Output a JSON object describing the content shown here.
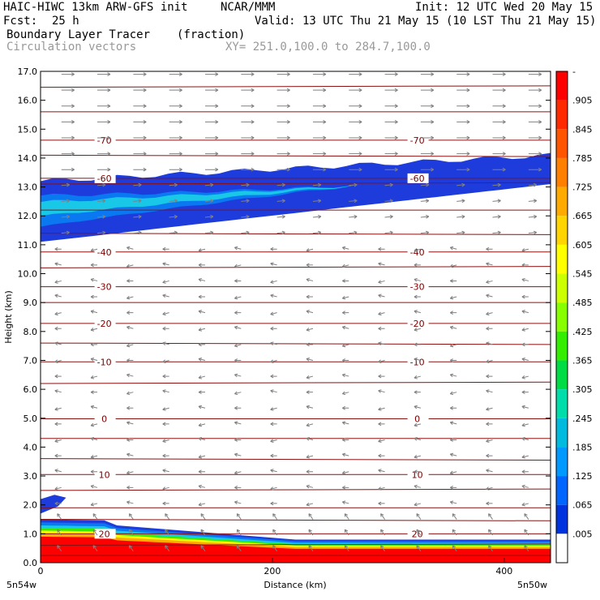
{
  "header": {
    "title_left": "HAIC-HIWC 13km ARW-GFS init",
    "org": "NCAR/MMM",
    "init": "Init: 12 UTC Wed 20 May 15",
    "fcst_label": "Fcst:",
    "fcst_value": "25 h",
    "valid": "Valid: 13 UTC Thu 21 May 15 (10 LST Thu 21 May 15)",
    "field_name": "Boundary Layer Tracer",
    "field_unit": "(fraction)",
    "vector_name": "Circulation vectors",
    "xy_range": "XY= 251.0,100.0 to 284.7,100.0"
  },
  "chart_data": {
    "type": "cross-section",
    "xlabel": "Distance (km)",
    "ylabel": "Height (km)",
    "xlim": [
      0,
      440
    ],
    "ylim": [
      0,
      17
    ],
    "x_ticks": [
      {
        "value": 0,
        "label": "0"
      },
      {
        "value": 200,
        "label": "200"
      },
      {
        "value": 400,
        "label": "400"
      }
    ],
    "y_ticks": [
      "0.0",
      "1.0",
      "2.0",
      "3.0",
      "4.0",
      "5.0",
      "6.0",
      "7.0",
      "8.0",
      "9.0",
      "10.0",
      "11.0",
      "12.0",
      "13.0",
      "14.0",
      "15.0",
      "16.0",
      "17.0"
    ],
    "left_endpoint": "5n54w",
    "right_endpoint": "5n50w",
    "colorbar": {
      "labels": [
        "-",
        ".905",
        ".845",
        ".785",
        ".725",
        ".665",
        ".605",
        ".545",
        ".485",
        ".425",
        ".365",
        ".305",
        ".245",
        ".185",
        ".125",
        ".065",
        ".005"
      ],
      "colors": [
        "#ff0000",
        "#ff2a00",
        "#ff5500",
        "#ff7f00",
        "#ffaa00",
        "#ffd400",
        "#ffff00",
        "#ccff00",
        "#88ff00",
        "#33ee00",
        "#00dd44",
        "#00ddaa",
        "#00bbdd",
        "#0099ff",
        "#0066ff",
        "#0033dd",
        "#ffffff"
      ]
    },
    "temperature_contours": [
      {
        "label": "-70",
        "height_km": 14.62
      },
      {
        "label": "-60",
        "height_km": 13.3
      },
      {
        "label": "-40",
        "height_km": 10.75
      },
      {
        "label": "-30",
        "height_km": 9.55
      },
      {
        "label": "-20",
        "height_km": 8.28
      },
      {
        "label": "-10",
        "height_km": 6.95
      },
      {
        "label": "0",
        "height_km": 4.98
      },
      {
        "label": "10",
        "height_km": 3.05
      },
      {
        "label": "20",
        "height_km": 1.0
      }
    ],
    "tracer_regions": [
      {
        "name": "upper-layer",
        "x_km": [
          0,
          440
        ],
        "base_km": [
          11.1,
          13.1
        ],
        "top_km": [
          13.2,
          14.1
        ],
        "value_range": [
          0.005,
          0.125
        ]
      },
      {
        "name": "boundary-layer",
        "x_km": [
          0,
          440
        ],
        "top_km": [
          1.5,
          0.8
        ],
        "value_range": [
          0.005,
          1.0
        ]
      }
    ]
  }
}
